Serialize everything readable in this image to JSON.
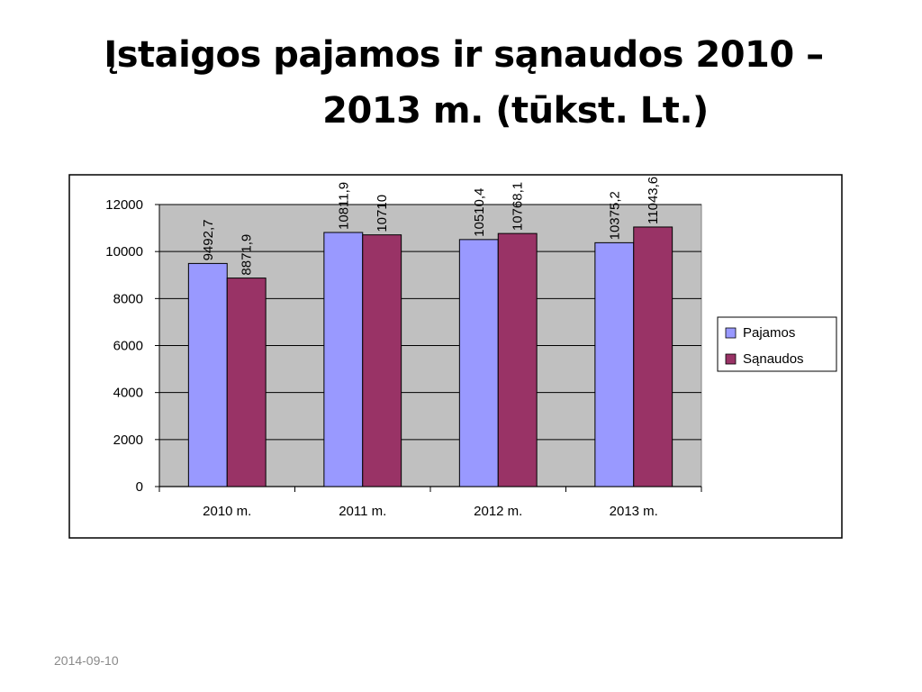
{
  "slide": {
    "title_line1": "Įstaigos pajamos ir sąnaudos 2010 –",
    "title_line2": "2013 m. (tūkst. Lt.)",
    "date": "2014-09-10"
  },
  "colors": {
    "pajamos": "#9999ff",
    "sanaudos": "#993366",
    "plot_bg": "#c0c0c0"
  },
  "chart_data": {
    "type": "bar",
    "categories": [
      "2010 m.",
      "2011 m.",
      "2012 m.",
      "2013 m."
    ],
    "series": [
      {
        "name": "Pajamos",
        "values": [
          9492.7,
          10811.9,
          10510.4,
          10375.2
        ],
        "labels": [
          "9492,7",
          "10811,9",
          "10510,4",
          "10375,2"
        ]
      },
      {
        "name": "Sąnaudos",
        "values": [
          8871.9,
          10710,
          10768.1,
          11043.6
        ],
        "labels": [
          "8871,9",
          "10710",
          "10768,1",
          "11043,6"
        ]
      }
    ],
    "ylim": [
      0,
      12000
    ],
    "yticks": [
      0,
      2000,
      4000,
      6000,
      8000,
      10000,
      12000
    ],
    "grid": true,
    "legend": "right"
  }
}
